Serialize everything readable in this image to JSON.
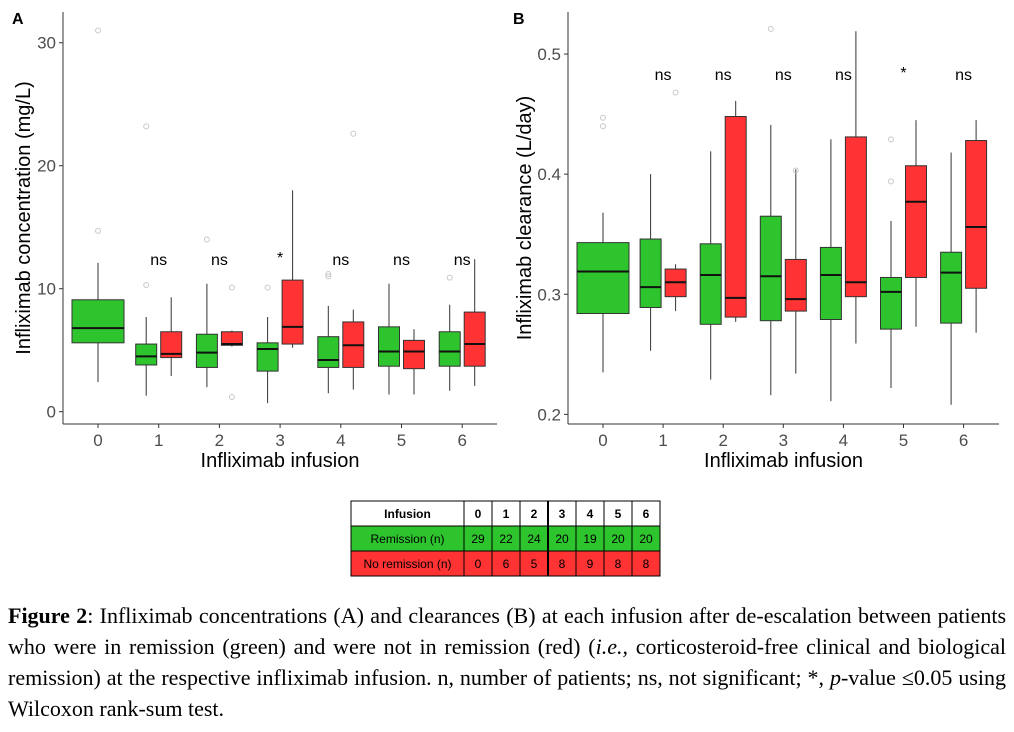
{
  "colors": {
    "remission": "#2ec42e",
    "no_remission": "#ff3333",
    "outlier": "#c8c8c8",
    "axis": "#333333"
  },
  "chart_data": [
    {
      "type": "box",
      "panel_label": "A",
      "xlabel": "Infliximab infusion",
      "ylabel": "Infliximab concentration (mg/L)",
      "categories": [
        "0",
        "1",
        "2",
        "3",
        "4",
        "5",
        "6"
      ],
      "ylim": [
        -1,
        32.5
      ],
      "yticks": [
        0,
        10,
        20,
        30
      ],
      "grid": false,
      "significance": [
        "",
        "ns",
        "ns",
        "*",
        "ns",
        "ns",
        "ns"
      ],
      "series": [
        {
          "group": "remission",
          "boxes": [
            {
              "x": "0",
              "min": 2.4,
              "q1": 5.6,
              "median": 6.8,
              "q3": 9.1,
              "max": 12.1,
              "outliers": [
                31.0,
                14.7
              ]
            },
            {
              "x": "1",
              "min": 1.3,
              "q1": 3.8,
              "median": 4.5,
              "q3": 5.5,
              "max": 7.7,
              "outliers": [
                23.2,
                10.3
              ]
            },
            {
              "x": "2",
              "min": 2.0,
              "q1": 3.6,
              "median": 4.8,
              "q3": 6.3,
              "max": 10.4,
              "outliers": [
                14.0
              ]
            },
            {
              "x": "3",
              "min": 0.7,
              "q1": 3.3,
              "median": 5.1,
              "q3": 5.6,
              "max": 7.7,
              "outliers": [
                10.1
              ]
            },
            {
              "x": "4",
              "min": 1.5,
              "q1": 3.6,
              "median": 4.2,
              "q3": 6.1,
              "max": 8.6,
              "outliers": [
                11.0,
                11.2
              ]
            },
            {
              "x": "5",
              "min": 1.4,
              "q1": 3.7,
              "median": 4.9,
              "q3": 6.9,
              "max": 10.4,
              "outliers": []
            },
            {
              "x": "6",
              "min": 1.7,
              "q1": 3.7,
              "median": 4.9,
              "q3": 6.5,
              "max": 8.7,
              "outliers": [
                10.9
              ]
            }
          ]
        },
        {
          "group": "no remission",
          "boxes": [
            {
              "x": "1",
              "min": 2.9,
              "q1": 4.4,
              "median": 4.7,
              "q3": 6.5,
              "max": 9.3,
              "outliers": []
            },
            {
              "x": "2",
              "min": 5.3,
              "q1": 5.4,
              "median": 5.5,
              "q3": 6.5,
              "max": 6.6,
              "outliers": [
                10.1,
                1.2
              ]
            },
            {
              "x": "3",
              "min": 5.2,
              "q1": 5.5,
              "median": 6.9,
              "q3": 10.7,
              "max": 18.0,
              "outliers": []
            },
            {
              "x": "4",
              "min": 1.8,
              "q1": 3.6,
              "median": 5.4,
              "q3": 7.3,
              "max": 8.3,
              "outliers": [
                22.6
              ]
            },
            {
              "x": "5",
              "min": 1.4,
              "q1": 3.5,
              "median": 4.9,
              "q3": 5.8,
              "max": 6.7,
              "outliers": []
            },
            {
              "x": "6",
              "min": 2.1,
              "q1": 3.7,
              "median": 5.5,
              "q3": 8.1,
              "max": 12.4,
              "outliers": []
            }
          ]
        }
      ]
    },
    {
      "type": "box",
      "panel_label": "B",
      "xlabel": "Infliximab infusion",
      "ylabel": "Infliximab clearance (L/day)",
      "categories": [
        "0",
        "1",
        "2",
        "3",
        "4",
        "5",
        "6"
      ],
      "ylim": [
        0.192,
        0.535
      ],
      "yticks": [
        0.2,
        0.3,
        0.4,
        0.5
      ],
      "grid": false,
      "significance": [
        "",
        "ns",
        "ns",
        "ns",
        "ns",
        "*",
        "ns"
      ],
      "series": [
        {
          "group": "remission",
          "boxes": [
            {
              "x": "0",
              "min": 0.235,
              "q1": 0.284,
              "median": 0.319,
              "q3": 0.343,
              "max": 0.368,
              "outliers": [
                0.447,
                0.44
              ]
            },
            {
              "x": "1",
              "min": 0.253,
              "q1": 0.289,
              "median": 0.306,
              "q3": 0.346,
              "max": 0.4,
              "outliers": []
            },
            {
              "x": "2",
              "min": 0.229,
              "q1": 0.275,
              "median": 0.316,
              "q3": 0.342,
              "max": 0.419,
              "outliers": []
            },
            {
              "x": "3",
              "min": 0.216,
              "q1": 0.278,
              "median": 0.315,
              "q3": 0.365,
              "max": 0.441,
              "outliers": [
                0.521
              ]
            },
            {
              "x": "4",
              "min": 0.211,
              "q1": 0.279,
              "median": 0.316,
              "q3": 0.339,
              "max": 0.429,
              "outliers": []
            },
            {
              "x": "5",
              "min": 0.222,
              "q1": 0.271,
              "median": 0.302,
              "q3": 0.314,
              "max": 0.361,
              "outliers": [
                0.429,
                0.394
              ]
            },
            {
              "x": "6",
              "min": 0.208,
              "q1": 0.276,
              "median": 0.318,
              "q3": 0.335,
              "max": 0.418,
              "outliers": []
            }
          ]
        },
        {
          "group": "no remission",
          "boxes": [
            {
              "x": "1",
              "min": 0.286,
              "q1": 0.298,
              "median": 0.31,
              "q3": 0.321,
              "max": 0.325,
              "outliers": [
                0.468
              ]
            },
            {
              "x": "2",
              "min": 0.277,
              "q1": 0.281,
              "median": 0.297,
              "q3": 0.448,
              "max": 0.461,
              "outliers": []
            },
            {
              "x": "3",
              "min": 0.234,
              "q1": 0.286,
              "median": 0.296,
              "q3": 0.329,
              "max": 0.404,
              "outliers": [
                0.403
              ]
            },
            {
              "x": "4",
              "min": 0.259,
              "q1": 0.298,
              "median": 0.31,
              "q3": 0.431,
              "max": 0.519,
              "outliers": []
            },
            {
              "x": "5",
              "min": 0.273,
              "q1": 0.314,
              "median": 0.377,
              "q3": 0.407,
              "max": 0.445,
              "outliers": []
            },
            {
              "x": "6",
              "min": 0.268,
              "q1": 0.305,
              "median": 0.356,
              "q3": 0.428,
              "max": 0.445,
              "outliers": []
            }
          ]
        }
      ]
    }
  ],
  "table": {
    "header": [
      "Infusion",
      "0",
      "1",
      "2",
      "3",
      "4",
      "5",
      "6"
    ],
    "rows": [
      {
        "label": "Remission (n)",
        "values": [
          "29",
          "22",
          "24",
          "20",
          "19",
          "20",
          "20"
        ]
      },
      {
        "label": "No remission (n)",
        "values": [
          "0",
          "6",
          "5",
          "8",
          "9",
          "8",
          "8"
        ]
      }
    ]
  },
  "caption": {
    "figure_label": "Figure 2",
    "part1": ": Infliximab concentrations (A) and clearances (B) at each infusion after de-escalation between patients who were in remission (green) and were not in remission (red) (",
    "ie": "i.e.,",
    "part2": " corticosteroid-free clinical and biological remission) at the respective infliximab infusion. n, number of patients; ns, not significant; *, ",
    "p": "p",
    "part3": "-value ≤0.05 using Wilcoxon rank-sum test."
  }
}
